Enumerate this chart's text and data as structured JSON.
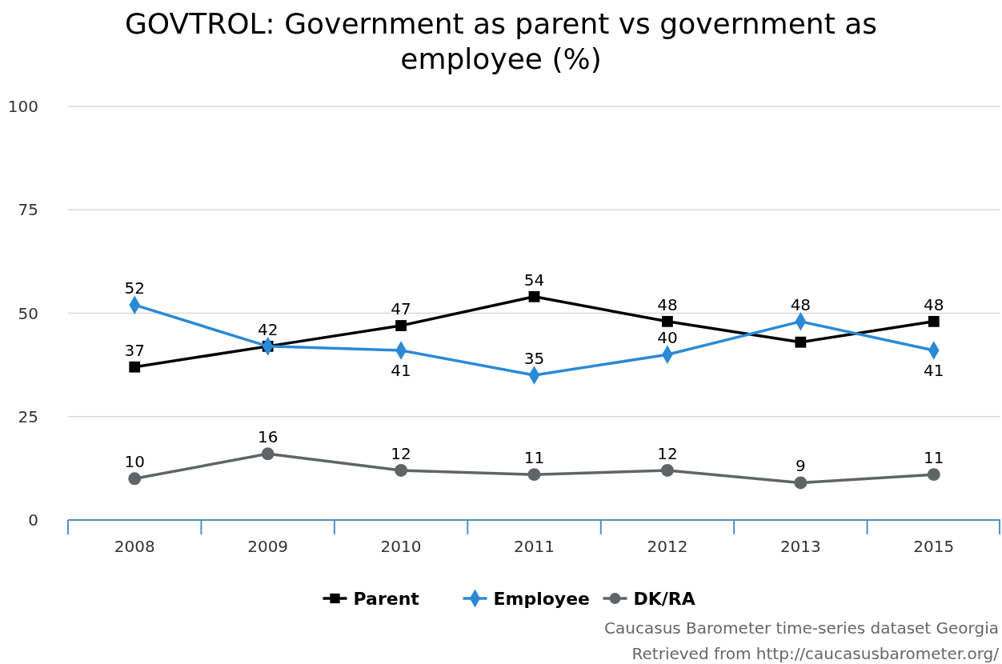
{
  "chart_data": {
    "type": "line",
    "title": "GOVTROL: Government as parent vs government as employee (%)",
    "categories": [
      "2008",
      "2009",
      "2010",
      "2011",
      "2012",
      "2013",
      "2015"
    ],
    "series": [
      {
        "name": "Parent",
        "color": "#000000",
        "marker": "square",
        "values": [
          37,
          42,
          47,
          54,
          48,
          43,
          48
        ],
        "value_labels": [
          "37",
          "42",
          "47",
          "54",
          "48",
          null,
          "48"
        ]
      },
      {
        "name": "Employee",
        "color": "#2b8ad6",
        "marker": "diamond",
        "values": [
          52,
          42,
          41,
          35,
          40,
          48,
          41
        ],
        "value_labels": [
          "52",
          null,
          "41",
          "35",
          "40",
          "48",
          "41"
        ]
      },
      {
        "name": "DK/RA",
        "color": "#5f6566",
        "marker": "circle",
        "values": [
          10,
          16,
          12,
          11,
          12,
          9,
          11
        ],
        "value_labels": [
          "10",
          "16",
          "12",
          "11",
          "12",
          "9",
          "11"
        ]
      }
    ],
    "ylim": [
      0,
      100
    ],
    "yticks": [
      0,
      25,
      50,
      75,
      100
    ],
    "grid": "y",
    "legend": "bottom",
    "annotations": [
      "Caucasus Barometer time-series dataset Georgia",
      "Retrieved from http://caucasusbarometer.org/"
    ]
  }
}
